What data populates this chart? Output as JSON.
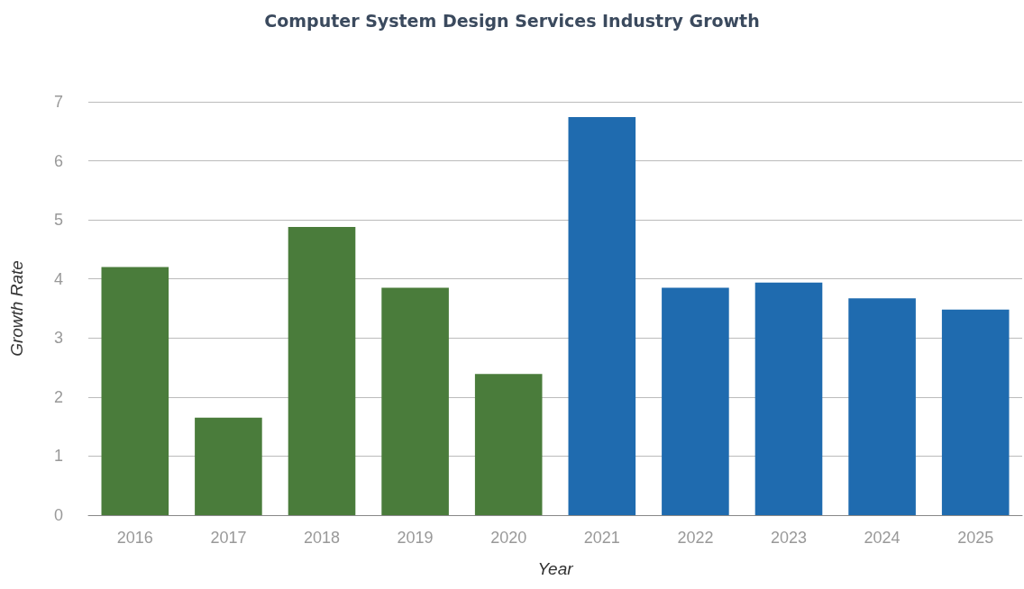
{
  "chart_data": {
    "type": "bar",
    "title": "Computer System Design Services Industry Growth",
    "xlabel": "Year",
    "ylabel": "Growth Rate",
    "categories": [
      "2016",
      "2017",
      "2018",
      "2019",
      "2020",
      "2021",
      "2022",
      "2023",
      "2024",
      "2025"
    ],
    "values": [
      4.2,
      1.65,
      4.88,
      3.85,
      2.39,
      6.74,
      3.85,
      3.94,
      3.67,
      3.48
    ],
    "colors": [
      "#4a7c3b",
      "#4a7c3b",
      "#4a7c3b",
      "#4a7c3b",
      "#4a7c3b",
      "#1f6baf",
      "#1f6baf",
      "#1f6baf",
      "#1f6baf",
      "#1f6baf"
    ],
    "ylim": [
      0,
      7
    ],
    "yticks": [
      0,
      1,
      2,
      3,
      4,
      5,
      6,
      7
    ],
    "grid": "y"
  }
}
